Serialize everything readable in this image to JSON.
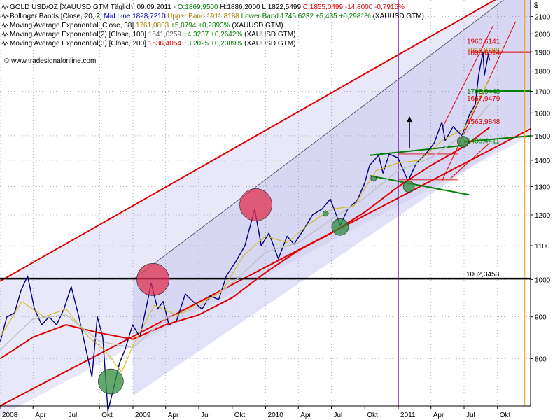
{
  "colors": {
    "price": "#000080",
    "channel": "#e00000",
    "horizontal": "#000000",
    "green": "#008000",
    "ema38": "#d4b800",
    "ema100": "#c0c0c0",
    "ema200": "#e00000",
    "bands": "#b0b020",
    "red_circle": "#e03050",
    "green_circle": "#2e8b3a",
    "shade_light": "#e6e6f8",
    "shade_mid": "#c8c8f0",
    "vline": "#7a2aa8",
    "right_vline": "#ff9900"
  },
  "legend": [
    {
      "name": "GOLD USD/OZ",
      "parts": [
        {
          "text": "GOLD USD/OZ [XAUUSD GTM  Täglich] 09.09.2011 - ",
          "color": "#000000"
        },
        {
          "text": "O:1869,9500 ",
          "color": "#008000"
        },
        {
          "text": "H:1886,2000 ",
          "color": "#000000"
        },
        {
          "text": "L:1822,5499 ",
          "color": "#000000"
        },
        {
          "text": "C:1855,0499 -14,8000 -0,7915%",
          "color": "#e00000"
        }
      ]
    },
    {
      "name": "Bollinger Bands",
      "parts": [
        {
          "text": "Bollinger Bands [Close, 20, 2] ",
          "color": "#000000"
        },
        {
          "text": "Mid Line 1828,7210 ",
          "color": "#0000c0"
        },
        {
          "text": "Upper Band 1911,8188 ",
          "color": "#b08000"
        },
        {
          "text": "Lower Band 1745,6232 ",
          "color": "#008000"
        },
        {
          "text": "+5,435 +0,2981% ",
          "color": "#008000"
        },
        {
          "text": "(XAUUSD GTM)",
          "color": "#000000"
        }
      ]
    },
    {
      "name": "EMA 38",
      "parts": [
        {
          "text": "Moving Average Exponential [Close, 38] ",
          "color": "#000000"
        },
        {
          "text": "1761,0803 ",
          "color": "#b08000"
        },
        {
          "text": "+5,0794 +0,2893% ",
          "color": "#008000"
        },
        {
          "text": "(XAUUSD GTM)",
          "color": "#000000"
        }
      ]
    },
    {
      "name": "EMA 100",
      "parts": [
        {
          "text": "Moving Average Exponential(2) [Close, 100] ",
          "color": "#000000"
        },
        {
          "text": "1641,0259 ",
          "color": "#606060"
        },
        {
          "text": "+4,3237 +0,2642% ",
          "color": "#008000"
        },
        {
          "text": "(XAUUSD GTM)",
          "color": "#000000"
        }
      ]
    },
    {
      "name": "EMA 200",
      "parts": [
        {
          "text": "Moving Average Exponential(3) [Close, 200] ",
          "color": "#000000"
        },
        {
          "text": "1536,4054 ",
          "color": "#e00000"
        },
        {
          "text": "+3,2025 +0,2089% ",
          "color": "#008000"
        },
        {
          "text": "(XAUUSD GTM)",
          "color": "#000000"
        }
      ]
    }
  ],
  "watermark": "© www.tradesignalonline.com",
  "chart_data": {
    "type": "line",
    "currency_label": "$",
    "ylim": [
      700,
      2200
    ],
    "y_scale": "log",
    "x_range": [
      "2008-01-01",
      "2011-12-31"
    ],
    "yticks": [
      800,
      900,
      1000,
      1100,
      1200,
      1300,
      1400,
      1500,
      1600,
      1700,
      1800,
      1900,
      2000,
      2100
    ],
    "xticks": [
      {
        "label": "2008",
        "date": "2008-01-01"
      },
      {
        "label": "Apr",
        "date": "2008-04-01"
      },
      {
        "label": "Jul",
        "date": "2008-07-01"
      },
      {
        "label": "Okt",
        "date": "2008-10-01"
      },
      {
        "label": "2009",
        "date": "2009-01-01"
      },
      {
        "label": "Apr",
        "date": "2009-04-01"
      },
      {
        "label": "Jul",
        "date": "2009-07-01"
      },
      {
        "label": "Okt",
        "date": "2009-10-01"
      },
      {
        "label": "2010",
        "date": "2010-01-01"
      },
      {
        "label": "Apr",
        "date": "2010-04-01"
      },
      {
        "label": "Jul",
        "date": "2010-07-01"
      },
      {
        "label": "Okt",
        "date": "2010-10-01"
      },
      {
        "label": "2011",
        "date": "2011-01-01"
      },
      {
        "label": "Apr",
        "date": "2011-04-01"
      },
      {
        "label": "Jul",
        "date": "2011-07-01"
      },
      {
        "label": "Okt",
        "date": "2011-10-01"
      }
    ],
    "series": [
      {
        "name": "GOLD USD/OZ",
        "role": "price",
        "points": [
          [
            "2008-01-02",
            840
          ],
          [
            "2008-01-20",
            900
          ],
          [
            "2008-02-10",
            910
          ],
          [
            "2008-02-28",
            970
          ],
          [
            "2008-03-17",
            1010
          ],
          [
            "2008-04-05",
            920
          ],
          [
            "2008-04-25",
            880
          ],
          [
            "2008-05-15",
            900
          ],
          [
            "2008-06-05",
            880
          ],
          [
            "2008-06-25",
            920
          ],
          [
            "2008-07-15",
            980
          ],
          [
            "2008-08-05",
            900
          ],
          [
            "2008-08-25",
            820
          ],
          [
            "2008-09-10",
            760
          ],
          [
            "2008-09-25",
            900
          ],
          [
            "2008-10-10",
            850
          ],
          [
            "2008-10-24",
            690
          ],
          [
            "2008-11-10",
            740
          ],
          [
            "2008-11-25",
            790
          ],
          [
            "2008-12-10",
            820
          ],
          [
            "2008-12-31",
            880
          ],
          [
            "2009-01-20",
            850
          ],
          [
            "2009-02-10",
            940
          ],
          [
            "2009-02-20",
            990
          ],
          [
            "2009-03-10",
            920
          ],
          [
            "2009-03-25",
            940
          ],
          [
            "2009-04-10",
            880
          ],
          [
            "2009-05-01",
            890
          ],
          [
            "2009-05-25",
            960
          ],
          [
            "2009-06-15",
            940
          ],
          [
            "2009-07-10",
            920
          ],
          [
            "2009-08-01",
            955
          ],
          [
            "2009-08-25",
            945
          ],
          [
            "2009-09-15",
            1010
          ],
          [
            "2009-10-10",
            1050
          ],
          [
            "2009-11-05",
            1100
          ],
          [
            "2009-12-02",
            1220
          ],
          [
            "2009-12-20",
            1100
          ],
          [
            "2010-01-10",
            1140
          ],
          [
            "2010-02-05",
            1060
          ],
          [
            "2010-03-01",
            1130
          ],
          [
            "2010-03-20",
            1105
          ],
          [
            "2010-04-15",
            1150
          ],
          [
            "2010-05-10",
            1200
          ],
          [
            "2010-06-05",
            1220
          ],
          [
            "2010-06-28",
            1255
          ],
          [
            "2010-07-25",
            1165
          ],
          [
            "2010-08-15",
            1220
          ],
          [
            "2010-09-10",
            1250
          ],
          [
            "2010-10-01",
            1315
          ],
          [
            "2010-10-14",
            1380
          ],
          [
            "2010-11-08",
            1420
          ],
          [
            "2010-11-20",
            1350
          ],
          [
            "2010-12-07",
            1425
          ],
          [
            "2010-12-31",
            1410
          ],
          [
            "2011-01-28",
            1320
          ],
          [
            "2011-02-20",
            1390
          ],
          [
            "2011-03-15",
            1420
          ],
          [
            "2011-04-10",
            1470
          ],
          [
            "2011-05-01",
            1560
          ],
          [
            "2011-05-10",
            1480
          ],
          [
            "2011-06-01",
            1540
          ],
          [
            "2011-06-25",
            1500
          ],
          [
            "2011-07-15",
            1590
          ],
          [
            "2011-08-01",
            1640
          ],
          [
            "2011-08-10",
            1780
          ],
          [
            "2011-08-22",
            1900
          ],
          [
            "2011-08-26",
            1780
          ],
          [
            "2011-09-06",
            1890
          ],
          [
            "2011-09-09",
            1855
          ]
        ]
      },
      {
        "name": "Moving Average Exponential [Close, 200]",
        "role": "ema200",
        "points": [
          [
            "2008-01-02",
            800
          ],
          [
            "2008-04-01",
            850
          ],
          [
            "2008-07-01",
            880
          ],
          [
            "2008-10-01",
            860
          ],
          [
            "2009-01-01",
            845
          ],
          [
            "2009-04-01",
            880
          ],
          [
            "2009-07-01",
            905
          ],
          [
            "2009-10-01",
            950
          ],
          [
            "2010-01-01",
            1020
          ],
          [
            "2010-04-01",
            1085
          ],
          [
            "2010-07-01",
            1140
          ],
          [
            "2010-10-01",
            1210
          ],
          [
            "2011-01-01",
            1300
          ],
          [
            "2011-04-01",
            1380
          ],
          [
            "2011-07-01",
            1455
          ],
          [
            "2011-09-09",
            1536
          ]
        ]
      },
      {
        "name": "Moving Average Exponential(2) [Close, 100]",
        "role": "ema100",
        "points": [
          [
            "2008-01-02",
            820
          ],
          [
            "2008-04-01",
            895
          ],
          [
            "2008-07-01",
            905
          ],
          [
            "2008-10-01",
            840
          ],
          [
            "2009-01-01",
            825
          ],
          [
            "2009-04-01",
            895
          ],
          [
            "2009-07-01",
            925
          ],
          [
            "2009-10-01",
            990
          ],
          [
            "2010-01-01",
            1080
          ],
          [
            "2010-04-01",
            1110
          ],
          [
            "2010-07-01",
            1185
          ],
          [
            "2010-10-01",
            1260
          ],
          [
            "2011-01-01",
            1360
          ],
          [
            "2011-04-01",
            1410
          ],
          [
            "2011-07-01",
            1505
          ],
          [
            "2011-09-09",
            1641
          ]
        ]
      },
      {
        "name": "Moving Average Exponential [Close, 38]",
        "role": "ema38",
        "points": [
          [
            "2008-01-02",
            850
          ],
          [
            "2008-03-01",
            940
          ],
          [
            "2008-05-01",
            900
          ],
          [
            "2008-07-01",
            920
          ],
          [
            "2008-09-01",
            850
          ],
          [
            "2008-10-15",
            820
          ],
          [
            "2008-12-01",
            770
          ],
          [
            "2009-01-01",
            830
          ],
          [
            "2009-03-01",
            930
          ],
          [
            "2009-05-01",
            905
          ],
          [
            "2009-07-01",
            935
          ],
          [
            "2009-09-01",
            965
          ],
          [
            "2009-11-01",
            1070
          ],
          [
            "2010-01-01",
            1130
          ],
          [
            "2010-03-01",
            1110
          ],
          [
            "2010-05-01",
            1170
          ],
          [
            "2010-07-01",
            1220
          ],
          [
            "2010-09-01",
            1230
          ],
          [
            "2010-11-01",
            1360
          ],
          [
            "2011-01-01",
            1390
          ],
          [
            "2011-03-01",
            1400
          ],
          [
            "2011-05-01",
            1480
          ],
          [
            "2011-07-01",
            1530
          ],
          [
            "2011-09-09",
            1761
          ]
        ]
      }
    ],
    "reference_lines": [
      {
        "value": 1002.3453,
        "label": "1002,3453",
        "color": "#000000"
      }
    ],
    "value_labels": [
      {
        "value": 1960.6141,
        "label": "1960,6141",
        "color": "#e00000"
      },
      {
        "value": 1911.8188,
        "label": "1911,8188",
        "color": "#b08000"
      },
      {
        "value": 1898.6014,
        "label": "1898,6014",
        "color": "#e00000"
      },
      {
        "value": 1702.0448,
        "label": "1702,0448",
        "color": "#008000"
      },
      {
        "value": 1667.9479,
        "label": "1667,9479",
        "color": "#e00000"
      },
      {
        "value": 1563.9848,
        "label": "1563,9848",
        "color": "#e00000"
      },
      {
        "value": 1480.4411,
        "label": "1480,4411",
        "color": "#008000"
      }
    ]
  }
}
